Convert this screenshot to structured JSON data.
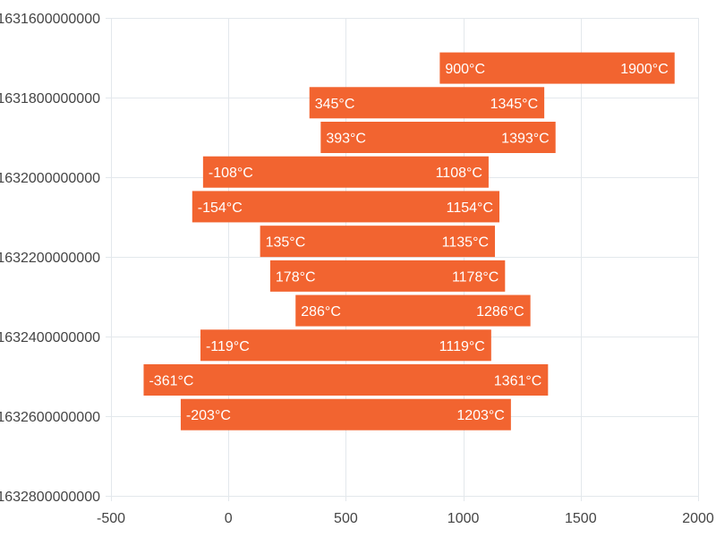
{
  "chart_data": {
    "type": "bar",
    "orientation": "horizontal",
    "subtype": "floating-range",
    "value_suffix": "°C",
    "xlim": [
      -500,
      2000
    ],
    "x_ticks": [
      -500,
      0,
      500,
      1000,
      1500,
      2000
    ],
    "ylim": [
      1631600000000,
      1632800000000
    ],
    "y_ticks": [
      1631600000000,
      1631800000000,
      1632000000000,
      1632200000000,
      1632400000000,
      1632600000000,
      1632800000000
    ],
    "y_tick_labels": [
      "1631600000000",
      "1631800000000",
      "1632000000000",
      "1632200000000",
      "1632400000000",
      "1632600000000",
      "1632800000000"
    ],
    "bar_color": "#f26430",
    "grid": true,
    "title": "",
    "xlabel": "",
    "ylabel": "",
    "bars": [
      {
        "y": 1631726000000,
        "start": 900,
        "end": 1900
      },
      {
        "y": 1631813000000,
        "start": 345,
        "end": 1345
      },
      {
        "y": 1631900000000,
        "start": 393,
        "end": 1393
      },
      {
        "y": 1631987000000,
        "start": -108,
        "end": 1108
      },
      {
        "y": 1632074000000,
        "start": -154,
        "end": 1154
      },
      {
        "y": 1632161000000,
        "start": 135,
        "end": 1135
      },
      {
        "y": 1632248000000,
        "start": 178,
        "end": 1178
      },
      {
        "y": 1632335000000,
        "start": 286,
        "end": 1286
      },
      {
        "y": 1632422000000,
        "start": -119,
        "end": 1119
      },
      {
        "y": 1632509000000,
        "start": -361,
        "end": 1361
      },
      {
        "y": 1632596000000,
        "start": -203,
        "end": 1203
      }
    ]
  }
}
